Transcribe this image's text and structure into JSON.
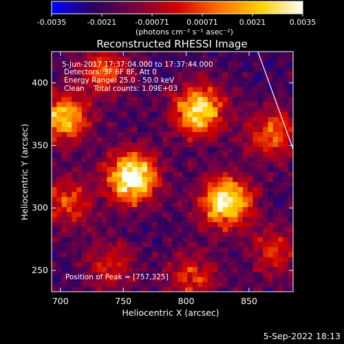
{
  "chart_data": {
    "type": "heatmap",
    "title": "Reconstructed RHESSI Image",
    "xlabel": "Heliocentric X (arcsec)",
    "ylabel": "Heliocentric Y (arcsec)",
    "xlim": [
      693,
      885
    ],
    "ylim": [
      233,
      425
    ],
    "x_ticks": [
      700,
      750,
      800,
      850
    ],
    "y_ticks": [
      250,
      300,
      350,
      400
    ],
    "colorbar": {
      "range": [
        -0.0035,
        0.0035
      ],
      "ticks": [
        "-0.0035",
        "-0.0021",
        "-0.00071",
        "0.00071",
        "0.0021",
        "0.0035"
      ],
      "unit_label": "(photons cm⁻² s⁻¹ asec⁻²)",
      "colormap": [
        "#0000ff",
        "#2a0060",
        "#7a0040",
        "#d00000",
        "#ff7000",
        "#ffd000",
        "#ffffff"
      ]
    },
    "annotations": {
      "time_range": "5-Jun-2017 17:37:04.000 to 17:37:44.000",
      "detectors": "Detectors: 3F 6F 8F, Att 0",
      "energy_range": "Energy Range: 25.0 - 50.0 keV",
      "clean_counts": "Clean    Total counts: 1.09E+03",
      "peak_position": "Position of Peak = [757,325]"
    },
    "sources": [
      {
        "x": 757,
        "y": 325,
        "peak": 1.0
      },
      {
        "x": 810,
        "y": 378,
        "peak": 0.85
      },
      {
        "x": 832,
        "y": 305,
        "peak": 0.9
      },
      {
        "x": 703,
        "y": 372,
        "peak": 0.7
      },
      {
        "x": 868,
        "y": 360,
        "peak": 0.5
      },
      {
        "x": 705,
        "y": 305,
        "peak": 0.45
      },
      {
        "x": 735,
        "y": 410,
        "peak": 0.45
      },
      {
        "x": 805,
        "y": 245,
        "peak": 0.4
      },
      {
        "x": 870,
        "y": 265,
        "peak": 0.35
      },
      {
        "x": 740,
        "y": 255,
        "peak": 0.35
      }
    ],
    "limb_line": [
      [
        857,
        425
      ],
      [
        885,
        347
      ]
    ]
  },
  "footer": {
    "date": "5-Sep-2022 18:13"
  }
}
